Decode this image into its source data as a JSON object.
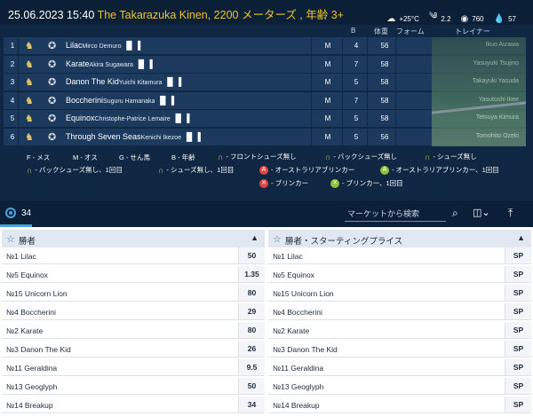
{
  "header": {
    "datetime": "25.06.2023 15:40",
    "race": "The Takarazuka Kinen, 2200 メーターズ , 年齢 3+",
    "weather": {
      "temp": "+25°C",
      "wind": "2.2",
      "pressure": "760",
      "humidity": "57"
    }
  },
  "columns": {
    "draw": "B",
    "weight": "体重",
    "form": "フォーム",
    "trainer": "トレイナー"
  },
  "runners": [
    {
      "num": "1",
      "horse": "Lilac",
      "jockey": "Mirco Demuro",
      "sex": "M",
      "draw": "4",
      "weight": "56",
      "trainer": "Ikuo Aizawa"
    },
    {
      "num": "2",
      "horse": "Karate",
      "jockey": "Akira Sugawara",
      "sex": "M",
      "draw": "7",
      "weight": "58",
      "trainer": "Yasuyuki Tsujino"
    },
    {
      "num": "3",
      "horse": "Danon The Kid",
      "jockey": "Yuichi Kitamura",
      "sex": "M",
      "draw": "5",
      "weight": "58",
      "trainer": "Takayuki Yasuda"
    },
    {
      "num": "4",
      "horse": "Boccherini",
      "jockey": "Suguru Hamanaka",
      "sex": "M",
      "draw": "7",
      "weight": "58",
      "trainer": "Yasutoshi Ikee"
    },
    {
      "num": "5",
      "horse": "Equinox",
      "jockey": "Christophe-Patrice Lemaire",
      "sex": "M",
      "draw": "5",
      "weight": "58",
      "trainer": "Tetsuya Kimura"
    },
    {
      "num": "6",
      "horse": "Through Seven Seas",
      "jockey": "Kenichi Ikezoe",
      "sex": "M",
      "draw": "5",
      "weight": "56",
      "trainer": "Tomohito Ozeki"
    }
  ],
  "legend": {
    "f": "F - メス",
    "m": "M - オス",
    "g": "G - せん馬",
    "b": "B - 年齢",
    "front_none": "- フロントシューズ無し",
    "back_none": "- バックシューズ無し",
    "shoes_none": "- シューズ無し",
    "back_none_once": "- バックシューズ無し、1回目",
    "shoes_none_once": "- シューズ無し、1回目",
    "aus_blinker": "- オーストラリアブリンカー",
    "aus_blinker_once": "- オーストラリアブリンカー、1回目",
    "blinker": "- ブリンカー",
    "blinker_once": "- ブリンカー、1回目"
  },
  "toolbar": {
    "count": "34",
    "search_placeholder": "マーケットから検索"
  },
  "markets": [
    {
      "title": "勝者",
      "selections": [
        {
          "name": "№1 Lilac",
          "odds": "50"
        },
        {
          "name": "№5 Equinox",
          "odds": "1.35"
        },
        {
          "name": "№15 Unicorn Lion",
          "odds": "80"
        },
        {
          "name": "№4 Boccherini",
          "odds": "29"
        },
        {
          "name": "№2 Karate",
          "odds": "80"
        },
        {
          "name": "№3 Danon The Kid",
          "odds": "26"
        },
        {
          "name": "№11 Geraldina",
          "odds": "9.5"
        },
        {
          "name": "№13 Geoglyph",
          "odds": "50"
        },
        {
          "name": "№14 Breakup",
          "odds": "34"
        }
      ]
    },
    {
      "title": "勝者・スターティングプライス",
      "selections": [
        {
          "name": "№1 Lilac",
          "odds": "SP"
        },
        {
          "name": "№5 Equinox",
          "odds": "SP"
        },
        {
          "name": "№15 Unicorn Lion",
          "odds": "SP"
        },
        {
          "name": "№4 Boccherini",
          "odds": "SP"
        },
        {
          "name": "№2 Karate",
          "odds": "SP"
        },
        {
          "name": "№3 Danon The Kid",
          "odds": "SP"
        },
        {
          "name": "№11 Geraldina",
          "odds": "SP"
        },
        {
          "name": "№13 Geoglyph",
          "odds": "SP"
        },
        {
          "name": "№14 Breakup",
          "odds": "SP"
        }
      ]
    }
  ]
}
